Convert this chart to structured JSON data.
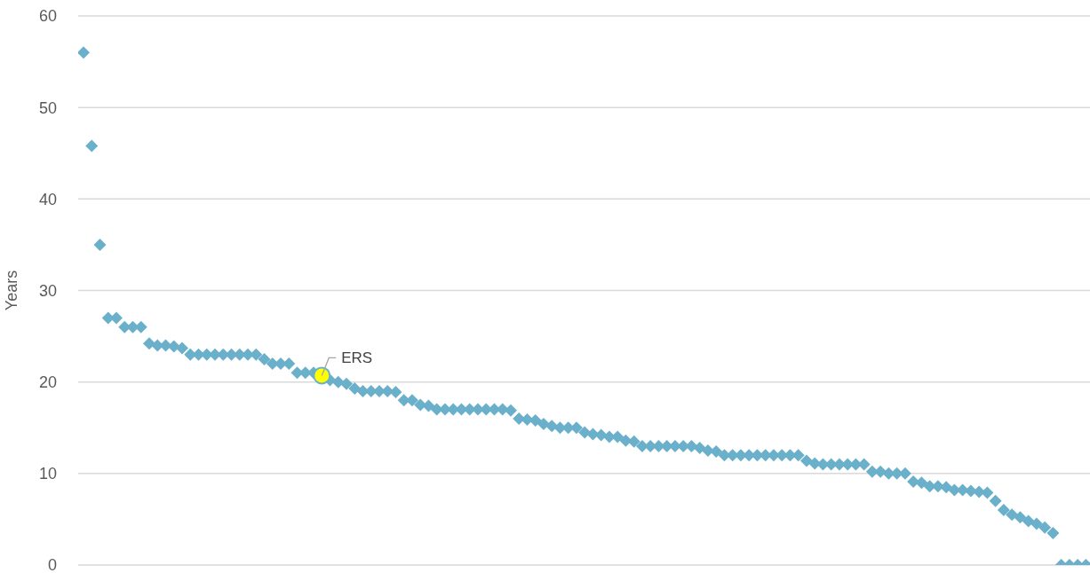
{
  "chart_data": {
    "type": "scatter",
    "ylabel": "Years",
    "categories": [
      null,
      null,
      null,
      null,
      null,
      null,
      null,
      null,
      null,
      null,
      null,
      null,
      null,
      null,
      null,
      null,
      null,
      null,
      null,
      null,
      null,
      null,
      null,
      null,
      null,
      null,
      null,
      null,
      null,
      null,
      null,
      null,
      null,
      null,
      null,
      null,
      null,
      null,
      null,
      null,
      null,
      null,
      null,
      null,
      null,
      null,
      null,
      null,
      null,
      null,
      null,
      null,
      null,
      null,
      null,
      null,
      null,
      null,
      null,
      null,
      null,
      null,
      null,
      null,
      null,
      null,
      null,
      null,
      null,
      null,
      null,
      null,
      null,
      null,
      null,
      null,
      null,
      null,
      null,
      null,
      null,
      null,
      null,
      null,
      null,
      null,
      null,
      null,
      null,
      null,
      null,
      null,
      null,
      null,
      null,
      null,
      null,
      null,
      null,
      null,
      null,
      null,
      null,
      null,
      null,
      null,
      null,
      null,
      null,
      null,
      null,
      null,
      null,
      null,
      null,
      null,
      null,
      null,
      null,
      null,
      null,
      null,
      null
    ],
    "series": [
      {
        "color": "#6ab0cb",
        "marker": "diamond",
        "values": [
          56,
          45.8,
          35,
          27,
          27,
          26,
          26,
          26,
          24.2,
          24,
          24,
          23.9,
          23.7,
          23,
          23,
          23,
          23,
          23,
          23,
          23,
          23,
          23,
          22.5,
          22,
          22,
          22,
          21,
          21,
          21,
          null,
          20.2,
          20,
          19.8,
          19.3,
          19,
          19,
          19,
          19,
          18.9,
          18,
          18,
          17.5,
          17.4,
          17,
          17,
          17,
          17,
          17,
          17,
          17,
          17,
          17,
          16.9,
          16,
          15.9,
          15.8,
          15.4,
          15.2,
          15,
          15,
          15,
          14.5,
          14.3,
          14.2,
          14,
          14,
          13.6,
          13.5,
          13,
          13,
          13,
          13,
          13,
          13,
          13,
          12.8,
          12.5,
          12.4,
          12,
          12,
          12,
          12,
          12,
          12,
          12,
          12,
          12,
          12,
          11.4,
          11.1,
          11,
          11,
          11,
          11,
          11,
          11,
          10.2,
          10.2,
          10,
          10,
          10,
          9.1,
          9,
          8.6,
          8.6,
          8.5,
          8.2,
          8.2,
          8.1,
          8,
          7.9,
          7,
          6,
          5.5,
          5.2,
          4.8,
          4.5,
          4.1,
          3.5,
          0,
          0,
          0,
          0
        ]
      },
      {
        "color": "#ffff00",
        "marker": "circle",
        "values": [
          null,
          null,
          null,
          null,
          null,
          null,
          null,
          null,
          null,
          null,
          null,
          null,
          null,
          null,
          null,
          null,
          null,
          null,
          null,
          null,
          null,
          null,
          null,
          null,
          null,
          null,
          null,
          null,
          null,
          20.7,
          null,
          null,
          null,
          null,
          null,
          null,
          null,
          null,
          null,
          null,
          null,
          null,
          null,
          null,
          null,
          null,
          null,
          null,
          null,
          null,
          null,
          null,
          null,
          null,
          null,
          null,
          null,
          null,
          null,
          null,
          null,
          null,
          null,
          null,
          null,
          null,
          null,
          null,
          null,
          null,
          null,
          null,
          null,
          null,
          null,
          null,
          null,
          null,
          null,
          null,
          null,
          null,
          null,
          null,
          null,
          null,
          null,
          null,
          null,
          null,
          null,
          null,
          null,
          null,
          null,
          null,
          null,
          null,
          null,
          null,
          null,
          null,
          null,
          null,
          null,
          null,
          null,
          null,
          null,
          null,
          null,
          null,
          null,
          null,
          null,
          null,
          null,
          null,
          null,
          null,
          null,
          null,
          null
        ]
      }
    ],
    "annotations": [
      "ERS"
    ],
    "ylim": [
      0,
      60
    ],
    "yticks": [
      0,
      10,
      20,
      30,
      40,
      50,
      60
    ],
    "grid": "y"
  }
}
